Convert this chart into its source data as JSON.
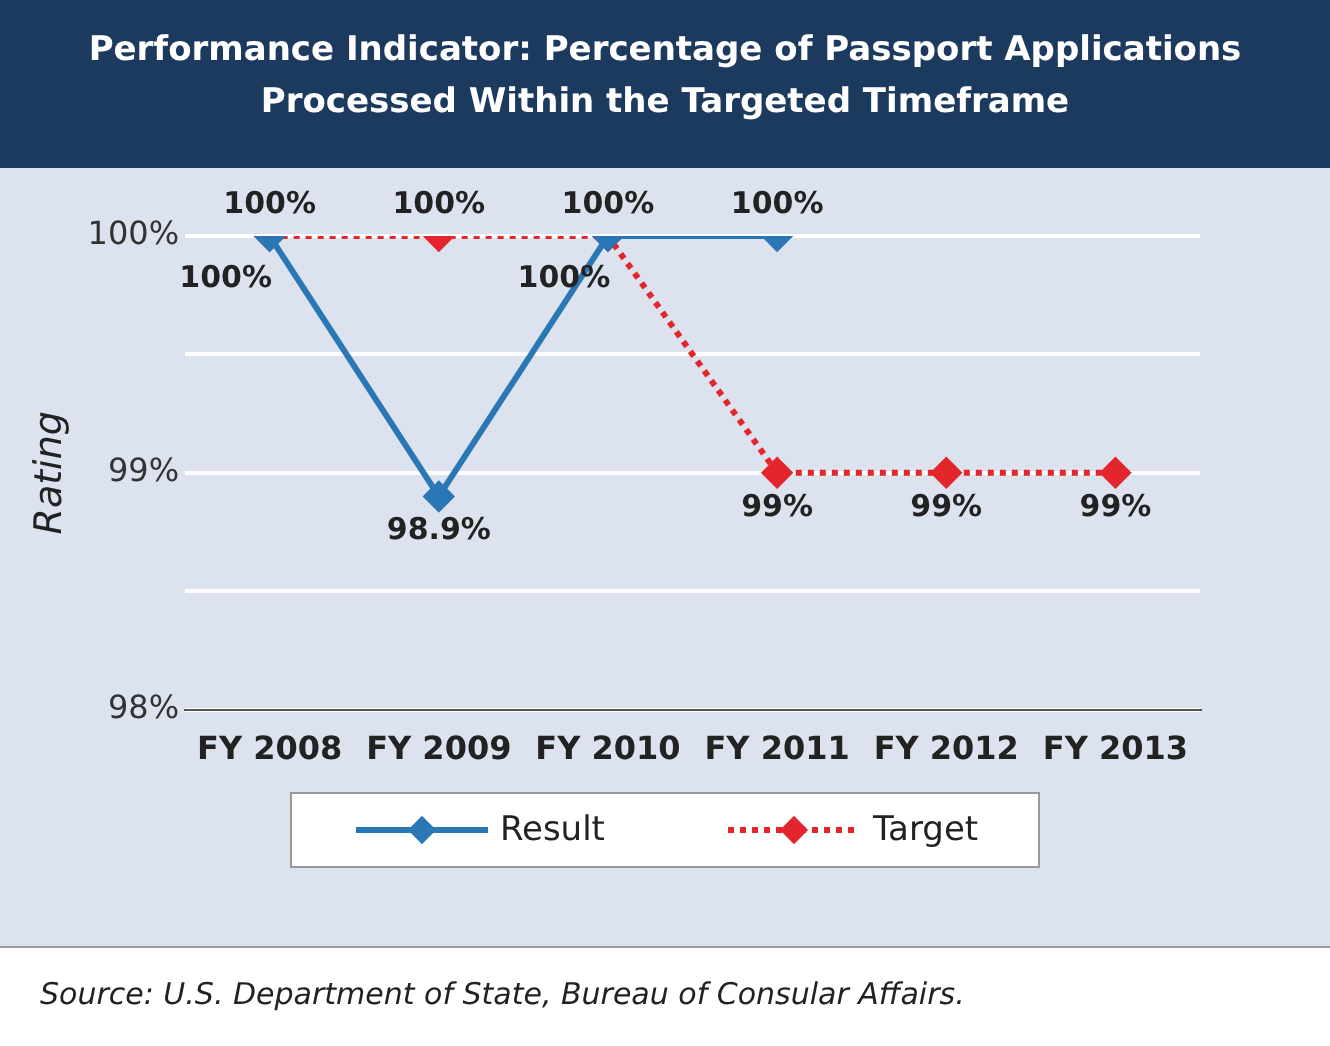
{
  "chart_data": {
    "type": "line",
    "title": "Performance Indicator: Percentage of Passport Applications Processed Within the Targeted Timeframe",
    "ylabel": "Rating",
    "categories": [
      "FY 2008",
      "FY 2009",
      "FY 2010",
      "FY 2011",
      "FY 2012",
      "FY 2013"
    ],
    "series": [
      {
        "name": "Result",
        "color": "#2a77b5",
        "values": [
          100,
          98.9,
          100,
          100,
          null,
          null
        ],
        "value_labels": [
          "100%",
          "98.9%",
          "100%",
          "100%",
          null,
          null
        ],
        "line_style": "solid"
      },
      {
        "name": "Target",
        "color": "#e3262b",
        "values": [
          100,
          100,
          100,
          99,
          99,
          99
        ],
        "value_labels": [
          "100%",
          "100%",
          "100%",
          "99%",
          "99%",
          "99%"
        ],
        "line_style": "dotted"
      }
    ],
    "ylim": [
      98,
      100
    ],
    "yticks": [
      {
        "value": 98,
        "label": "98%"
      },
      {
        "value": 98.5,
        "label": null
      },
      {
        "value": 99,
        "label": "99%"
      },
      {
        "value": 99.5,
        "label": null
      },
      {
        "value": 100,
        "label": "100%"
      }
    ],
    "grid": "y",
    "marker": "diamond",
    "legend": "bottom",
    "annotations": [
      "Source: U.S. Department of State, Bureau of Consular Affairs."
    ]
  }
}
